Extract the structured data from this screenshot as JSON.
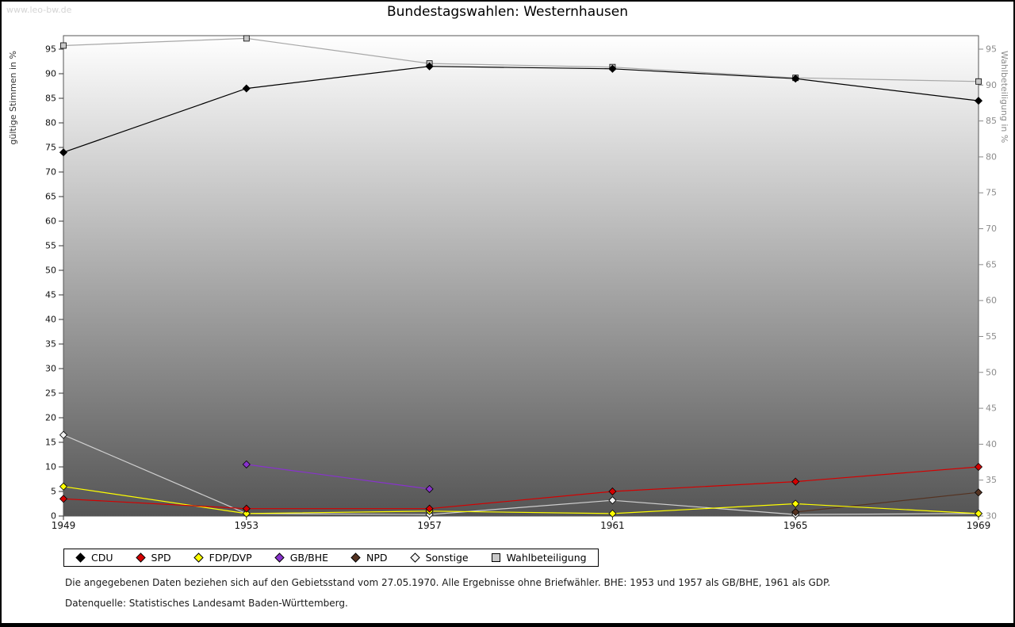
{
  "watermark": "www.leo-bw.de",
  "title": "Bundestagswahlen: Westernhausen",
  "chart_data": {
    "type": "line",
    "x": [
      1949,
      1953,
      1957,
      1961,
      1965,
      1969
    ],
    "left_axis": {
      "label": "gültige Stimmen in %",
      "min": 0,
      "max": 95,
      "tick_step": 5
    },
    "right_axis": {
      "label": "Wahlbeteiligung in %",
      "min": 30,
      "max": 95,
      "tick_step": 5
    },
    "grid": false,
    "legend_position": "bottom",
    "plot_background": {
      "top": "#ffffff",
      "bottom": "#555555"
    },
    "series": [
      {
        "name": "CDU",
        "axis": "left",
        "marker": "diamond",
        "color": "#000000",
        "line": "#000000",
        "values": [
          74,
          87,
          91.5,
          91,
          89,
          84.5
        ]
      },
      {
        "name": "SPD",
        "axis": "left",
        "marker": "diamond",
        "color": "#d40000",
        "line": "#d40000",
        "values": [
          3.5,
          1.5,
          1.5,
          5,
          7,
          10
        ]
      },
      {
        "name": "FDP/DVP",
        "axis": "left",
        "marker": "diamond",
        "color": "#ffff00",
        "line": "#ffff00",
        "values": [
          6,
          0.5,
          1,
          0.5,
          2.5,
          0.5
        ]
      },
      {
        "name": "GB/BHE",
        "axis": "left",
        "marker": "diamond",
        "color": "#8833cc",
        "line": "#8833cc",
        "values": [
          null,
          10.5,
          5.5,
          null,
          null,
          null
        ]
      },
      {
        "name": "NPD",
        "axis": "left",
        "marker": "diamond",
        "color": "#553322",
        "line": "#553322",
        "values": [
          null,
          null,
          null,
          null,
          0.8,
          4.8
        ]
      },
      {
        "name": "Sonstige",
        "axis": "left",
        "marker": "diamond",
        "color": "#f2f2f2",
        "line": "#cfcfcf",
        "values": [
          16.5,
          0.5,
          0.3,
          3.2,
          0.3,
          0.5
        ]
      },
      {
        "name": "Wahlbeteiligung",
        "axis": "right",
        "marker": "square",
        "color": "#c8c8c8",
        "line": "#a8a8a8",
        "values": [
          95.5,
          96.5,
          93,
          92.5,
          91,
          90.5
        ]
      }
    ]
  },
  "footnotes": {
    "note": "Die angegebenen Daten beziehen sich auf den Gebietsstand vom 27.05.1970. Alle Ergebnisse ohne Briefwähler. BHE: 1953 und 1957 als GB/BHE, 1961 als GDP.",
    "source": "Datenquelle: Statistisches Landesamt Baden-Württemberg."
  }
}
